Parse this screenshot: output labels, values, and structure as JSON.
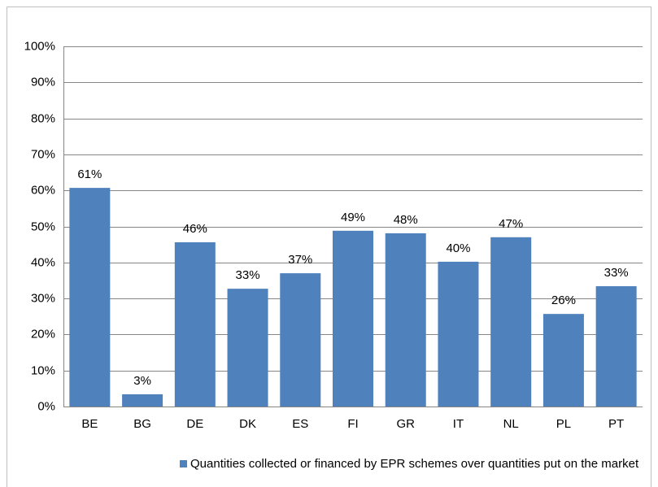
{
  "chart_data": {
    "type": "bar",
    "categories": [
      "BE",
      "BG",
      "DE",
      "DK",
      "ES",
      "FI",
      "GR",
      "IT",
      "NL",
      "PL",
      "PT"
    ],
    "series": [
      {
        "name": "Quantities collected or financed by EPR schemes over quantities put on the market",
        "color": "#4f81bd",
        "values": [
          60.7,
          3.4,
          45.6,
          32.7,
          37.0,
          48.8,
          48.1,
          40.2,
          47.0,
          25.7,
          33.4
        ],
        "value_labels": [
          "61%",
          "3%",
          "46%",
          "33%",
          "37%",
          "49%",
          "48%",
          "40%",
          "47%",
          "26%",
          "33%"
        ]
      }
    ],
    "ylim": [
      0,
      100
    ],
    "yticks": [
      {
        "value": 0,
        "label": "0%"
      },
      {
        "value": 10,
        "label": "10%"
      },
      {
        "value": 20,
        "label": "20%"
      },
      {
        "value": 30,
        "label": "30%"
      },
      {
        "value": 40,
        "label": "40%"
      },
      {
        "value": 50,
        "label": "50%"
      },
      {
        "value": 60,
        "label": "60%"
      },
      {
        "value": 70,
        "label": "70%"
      },
      {
        "value": 80,
        "label": "80%"
      },
      {
        "value": 90,
        "label": "90%"
      },
      {
        "value": 100,
        "label": "100%"
      }
    ],
    "grid": true,
    "legend": "bottom"
  }
}
